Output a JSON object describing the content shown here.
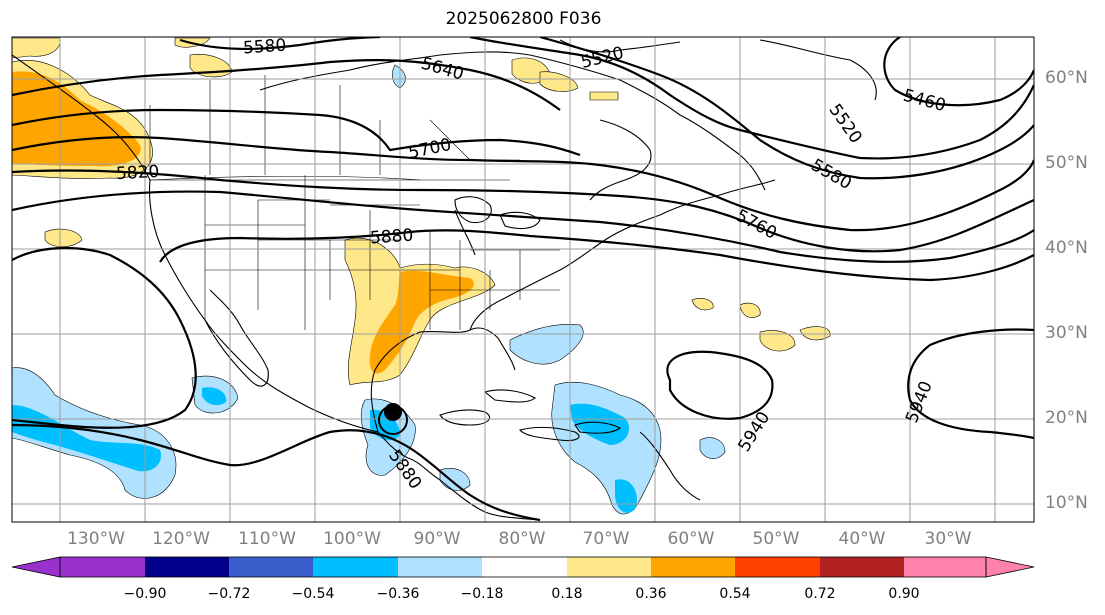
{
  "title": "2025062800 F036",
  "lat_labels": [
    "60°N",
    "50°N",
    "40°N",
    "30°N",
    "20°N",
    "10°N"
  ],
  "lon_labels": [
    "130°W",
    "120°W",
    "110°W",
    "100°W",
    "90°W",
    "80°W",
    "70°W",
    "60°W",
    "50°W",
    "40°W",
    "30°W"
  ],
  "contour_labels": [
    "5580",
    "5640",
    "5520",
    "5460",
    "5700",
    "5520",
    "5580",
    "5760",
    "5820",
    "5880",
    "5880",
    "5940",
    "5940"
  ],
  "colorbar": {
    "labels": [
      "−0.90",
      "−0.72",
      "−0.54",
      "−0.36",
      "−0.18",
      "0.18",
      "0.36",
      "0.54",
      "0.72",
      "0.90"
    ],
    "colors": [
      "#9932cc",
      "#00008b",
      "#3a5fcd",
      "#00bfff",
      "#b0e2ff",
      "#ffffff",
      "#ffe88a",
      "#ffa500",
      "#ff4000",
      "#b22222",
      "#ff82ab"
    ]
  },
  "marker": "storm-center"
}
